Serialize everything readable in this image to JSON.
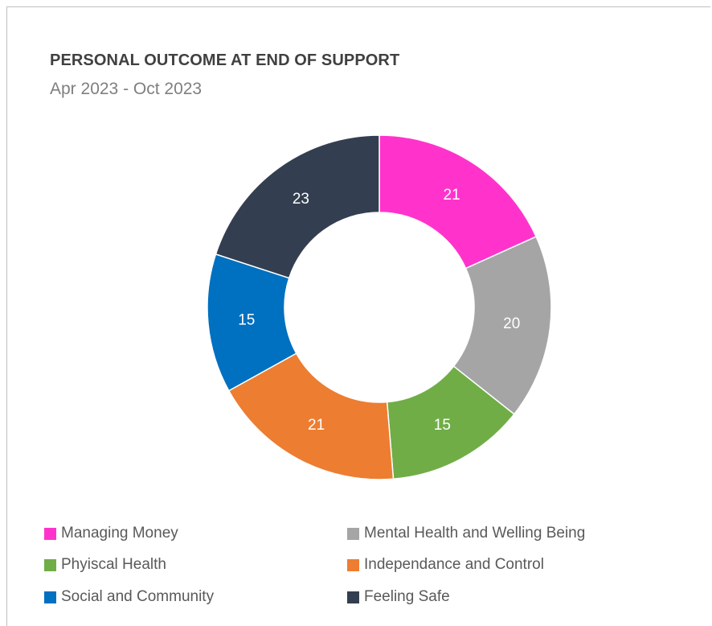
{
  "chart_data": {
    "type": "pie",
    "variant": "donut",
    "title": "PERSONAL OUTCOME AT END OF SUPPORT",
    "subtitle": "Apr 2023 - Oct 2023",
    "legend_position": "bottom",
    "categories": [
      "Managing Money",
      "Mental Health and Welling Being",
      "Phyiscal Health",
      "Independance and Control",
      "Social and Community",
      "Feeling Safe"
    ],
    "values": [
      21,
      20,
      15,
      21,
      15,
      23
    ],
    "colors": [
      "#ff33cc",
      "#a5a5a5",
      "#70ad47",
      "#ed7d31",
      "#0070c0",
      "#333f50"
    ],
    "data_labels": [
      "21",
      "20",
      "15",
      "21",
      "15",
      "23"
    ]
  }
}
